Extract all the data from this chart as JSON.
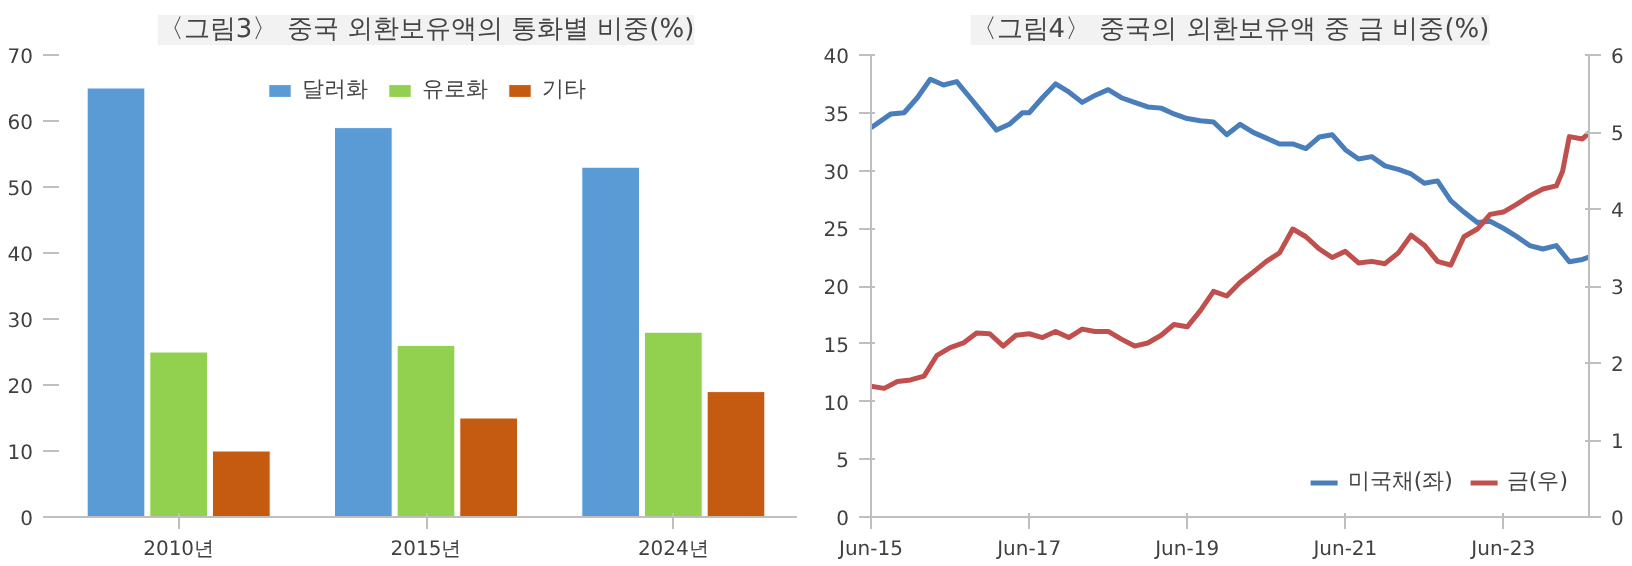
{
  "chart_data": [
    {
      "type": "bar",
      "title": "〈그림3〉 중국 외환보유액의 통화별 비중(%)",
      "categories": [
        "2010년",
        "2015년",
        "2024년"
      ],
      "series": [
        {
          "name": "달러화",
          "color": "#5b9bd5",
          "values": [
            65,
            59,
            53
          ]
        },
        {
          "name": "유로화",
          "color": "#92d050",
          "values": [
            25,
            26,
            28
          ]
        },
        {
          "name": "기타",
          "color": "#c55a11",
          "values": [
            10,
            15,
            19
          ]
        }
      ],
      "ylim": [
        0,
        70
      ],
      "yticks": [
        0,
        10,
        20,
        30,
        40,
        50,
        60,
        70
      ],
      "grid": false,
      "legend": "top"
    },
    {
      "type": "line",
      "title": "〈그림4〉 중국의 외환보유액 중 금 비중(%)",
      "series": [
        {
          "name": "미국채(좌)",
          "color": "#4a7ebb",
          "x": [
            "2015-06",
            "2015-09",
            "2015-11",
            "2016-01",
            "2016-03",
            "2016-05",
            "2016-07",
            "2016-09",
            "2016-11",
            "2017-01",
            "2017-03",
            "2017-05",
            "2017-06",
            "2017-08",
            "2017-10",
            "2017-12",
            "2018-02",
            "2018-04",
            "2018-06",
            "2018-08",
            "2018-10",
            "2018-12",
            "2019-02",
            "2019-04",
            "2019-06",
            "2019-08",
            "2019-10",
            "2019-12",
            "2020-02",
            "2020-04",
            "2020-06",
            "2020-08",
            "2020-10",
            "2020-12",
            "2021-02",
            "2021-04",
            "2021-06",
            "2021-08",
            "2021-10",
            "2021-12",
            "2022-02",
            "2022-04",
            "2022-06",
            "2022-08",
            "2022-10",
            "2022-12",
            "2023-02",
            "2023-04",
            "2023-06",
            "2023-08",
            "2023-10",
            "2023-12",
            "2024-02",
            "2024-04",
            "2024-06",
            "2024-07"
          ],
          "values": [
            33.7,
            34.9,
            35.0,
            36.3,
            37.9,
            37.4,
            37.7,
            36.3,
            34.9,
            33.5,
            34.0,
            35.0,
            35.0,
            36.3,
            37.5,
            36.8,
            35.9,
            36.5,
            37.0,
            36.3,
            35.9,
            35.5,
            35.4,
            34.9,
            34.5,
            34.3,
            34.2,
            33.1,
            34.0,
            33.3,
            32.8,
            32.3,
            32.3,
            31.9,
            32.9,
            33.1,
            31.8,
            31.0,
            31.2,
            30.4,
            30.1,
            29.7,
            28.9,
            29.1,
            27.4,
            26.4,
            25.5,
            25.6,
            25.0,
            24.3,
            23.5,
            23.2,
            23.5,
            22.1,
            22.3,
            22.5
          ]
        },
        {
          "name": "금(우)",
          "color": "#c0504d",
          "axis": "y2",
          "x": [
            "2015-06",
            "2015-08",
            "2015-10",
            "2015-12",
            "2016-02",
            "2016-04",
            "2016-06",
            "2016-08",
            "2016-10",
            "2016-12",
            "2017-02",
            "2017-04",
            "2017-06",
            "2017-08",
            "2017-10",
            "2017-12",
            "2018-02",
            "2018-04",
            "2018-06",
            "2018-08",
            "2018-10",
            "2018-12",
            "2019-02",
            "2019-04",
            "2019-06",
            "2019-08",
            "2019-10",
            "2019-12",
            "2020-02",
            "2020-04",
            "2020-06",
            "2020-08",
            "2020-10",
            "2020-12",
            "2021-02",
            "2021-04",
            "2021-06",
            "2021-08",
            "2021-10",
            "2021-12",
            "2022-02",
            "2022-04",
            "2022-06",
            "2022-08",
            "2022-10",
            "2022-12",
            "2023-02",
            "2023-04",
            "2023-06",
            "2023-08",
            "2023-10",
            "2023-12",
            "2024-02",
            "2024-03",
            "2024-04",
            "2024-06",
            "2024-07"
          ],
          "values": [
            1.7,
            1.67,
            1.76,
            1.78,
            1.83,
            2.1,
            2.2,
            2.26,
            2.39,
            2.38,
            2.22,
            2.36,
            2.38,
            2.33,
            2.41,
            2.33,
            2.44,
            2.41,
            2.41,
            2.31,
            2.22,
            2.26,
            2.36,
            2.5,
            2.47,
            2.68,
            2.93,
            2.87,
            3.05,
            3.18,
            3.32,
            3.43,
            3.74,
            3.64,
            3.48,
            3.37,
            3.45,
            3.3,
            3.32,
            3.29,
            3.43,
            3.66,
            3.53,
            3.32,
            3.27,
            3.64,
            3.74,
            3.93,
            3.96,
            4.06,
            4.17,
            4.26,
            4.3,
            4.49,
            4.94,
            4.91,
            4.99
          ]
        }
      ],
      "xlim": [
        "2015-06",
        "2024-07"
      ],
      "xticks": [
        {
          "value": "2015-06",
          "label": "Jun-15"
        },
        {
          "value": "2017-06",
          "label": "Jun-17"
        },
        {
          "value": "2019-06",
          "label": "Jun-19"
        },
        {
          "value": "2021-06",
          "label": "Jun-21"
        },
        {
          "value": "2023-06",
          "label": "Jun-23"
        }
      ],
      "ylim": [
        0,
        40
      ],
      "yticks": [
        0,
        5,
        10,
        15,
        20,
        25,
        30,
        35,
        40
      ],
      "y2lim": [
        0,
        6
      ],
      "y2ticks": [
        0,
        1,
        2,
        3,
        4,
        5,
        6
      ],
      "grid": false,
      "legend": "bottom right"
    }
  ]
}
